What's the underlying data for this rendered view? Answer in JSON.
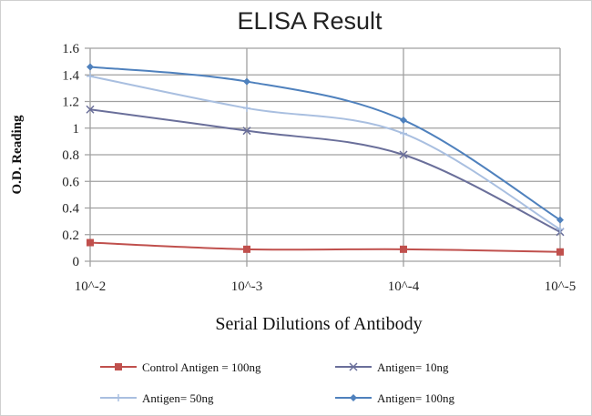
{
  "chart_data": {
    "type": "line",
    "title": "ELISA Result",
    "xlabel": "Serial Dilutions  of Antibody",
    "ylabel": "O.D. Reading",
    "categories": [
      "10^-2",
      "10^-3",
      "10^-4",
      "10^-5"
    ],
    "ylim": [
      0,
      1.6
    ],
    "yticks": [
      "0",
      "0.2",
      "0.4",
      "0.6",
      "0.8",
      "1",
      "1.2",
      "1.4",
      "1.6"
    ],
    "grid": true,
    "legend_position": "bottom",
    "series": [
      {
        "name": "Control Antigen = 100ng",
        "color": "#c0504d",
        "marker": "square",
        "values": [
          0.14,
          0.09,
          0.09,
          0.07
        ]
      },
      {
        "name": "Antigen= 10ng",
        "color": "#6a6f9a",
        "marker": "x",
        "values": [
          1.14,
          0.98,
          0.8,
          0.22
        ]
      },
      {
        "name": "Antigen= 50ng",
        "color": "#a9bfe0",
        "marker": "plus",
        "values": [
          1.39,
          1.15,
          0.96,
          0.24
        ]
      },
      {
        "name": "Antigen= 100ng",
        "color": "#4f81bd",
        "marker": "diamond",
        "values": [
          1.46,
          1.35,
          1.06,
          0.31
        ]
      }
    ]
  }
}
